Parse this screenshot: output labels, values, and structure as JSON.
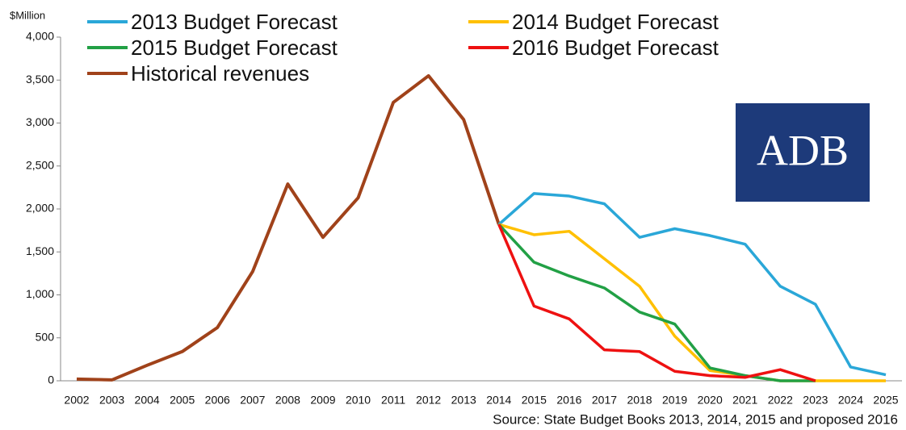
{
  "chart_data": {
    "type": "line",
    "y_label": "$Million",
    "source": "Source: State Budget Books 2013, 2014, 2015 and proposed 2016",
    "logo": "ADB",
    "categories": [
      "2002",
      "2003",
      "2004",
      "2005",
      "2006",
      "2007",
      "2008",
      "2009",
      "2010",
      "2011",
      "2012",
      "2013",
      "2014",
      "2015",
      "2016",
      "2017",
      "2018",
      "2019",
      "2020",
      "2021",
      "2022",
      "2023",
      "2024",
      "2025"
    ],
    "ylim": [
      0,
      4000
    ],
    "yticks": [
      0,
      500,
      {
        "value": 1000,
        "label": "1,000"
      },
      {
        "value": 1500,
        "label": "1,500"
      },
      {
        "value": 2000,
        "label": "2,000"
      },
      {
        "value": 2500,
        "label": "2,500"
      },
      {
        "value": 3000,
        "label": "3,000"
      },
      {
        "value": 3500,
        "label": "3,500"
      },
      {
        "value": 4000,
        "label": "4,000"
      }
    ],
    "grid": false,
    "series": [
      {
        "name": "2013 Budget Forecast",
        "color": "#2aa7d8",
        "values": [
          null,
          null,
          null,
          null,
          null,
          null,
          null,
          null,
          null,
          null,
          null,
          null,
          1820,
          2180,
          2150,
          2060,
          1670,
          1770,
          1690,
          1590,
          1100,
          890,
          160,
          70
        ]
      },
      {
        "name": "2014 Budget Forecast",
        "color": "#ffc000",
        "values": [
          null,
          null,
          null,
          null,
          null,
          null,
          null,
          null,
          null,
          null,
          null,
          null,
          1820,
          1700,
          1740,
          1420,
          1100,
          520,
          120,
          60,
          0,
          0,
          0,
          0
        ]
      },
      {
        "name": "2015 Budget Forecast",
        "color": "#22a045",
        "values": [
          null,
          null,
          null,
          null,
          null,
          null,
          null,
          null,
          null,
          null,
          null,
          null,
          1820,
          1380,
          1220,
          1080,
          800,
          660,
          150,
          60,
          0,
          0,
          null,
          null
        ]
      },
      {
        "name": "2016 Budget Forecast",
        "color": "#ee1111",
        "values": [
          null,
          null,
          null,
          null,
          null,
          null,
          null,
          null,
          null,
          null,
          null,
          null,
          1820,
          870,
          720,
          360,
          340,
          110,
          60,
          40,
          130,
          0,
          null,
          null
        ]
      },
      {
        "name": "Historical revenues",
        "color": "#a0421a",
        "values": [
          20,
          10,
          180,
          340,
          620,
          1270,
          2290,
          1670,
          2130,
          3240,
          3550,
          3040,
          1820,
          null,
          null,
          null,
          null,
          null,
          null,
          null,
          null,
          null,
          null,
          null
        ]
      }
    ]
  }
}
